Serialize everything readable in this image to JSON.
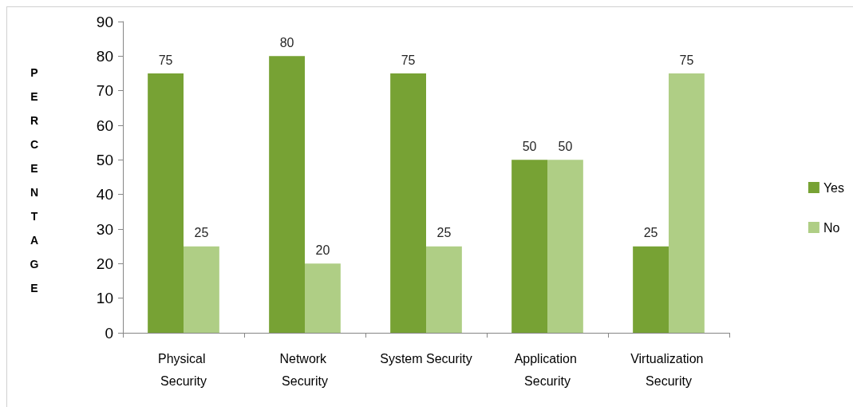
{
  "chart_data": {
    "type": "bar",
    "ylabel": "PERCENTAGE",
    "categories": [
      "Physical Security",
      "Network Security",
      "System Security",
      "Application Security",
      "Virtualization Security"
    ],
    "series": [
      {
        "name": "Yes",
        "color": "#77a234",
        "values": [
          75,
          80,
          75,
          50,
          25
        ]
      },
      {
        "name": "No",
        "color": "#afce85",
        "values": [
          25,
          20,
          25,
          50,
          75
        ]
      }
    ],
    "ylim": [
      0,
      90
    ],
    "yticks": [
      0,
      10,
      20,
      30,
      40,
      50,
      60,
      70,
      80,
      90
    ],
    "legend": "right",
    "data_labels": true
  }
}
